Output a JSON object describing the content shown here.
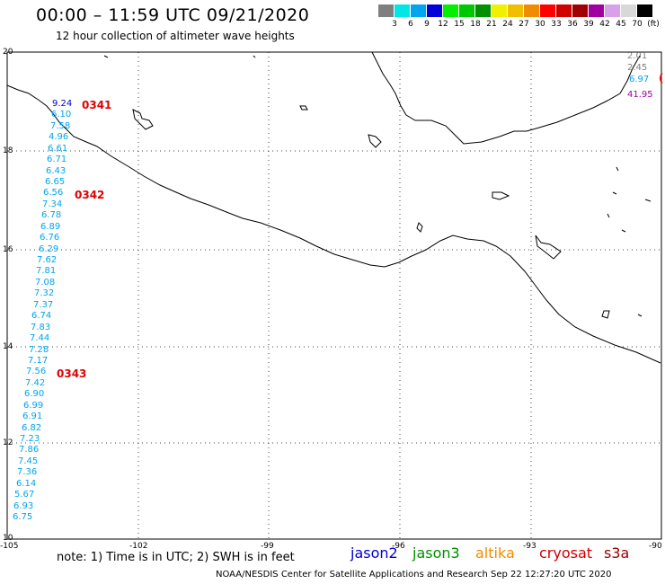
{
  "title": "00:00 – 11:59 UTC 09/21/2020",
  "subtitle": "12 hour collection of altimeter wave heights",
  "legend": {
    "labels": [
      "3",
      "6",
      "9",
      "12",
      "15",
      "18",
      "21",
      "24",
      "27",
      "30",
      "33",
      "36",
      "39",
      "42",
      "45",
      "70"
    ],
    "unit": "(ft)",
    "colors": [
      "#7f7f7f",
      "#00e6e6",
      "#00a5ef",
      "#0000d8",
      "#00f000",
      "#00c800",
      "#009000",
      "#f0f000",
      "#f0c000",
      "#f08c00",
      "#ff0000",
      "#d00000",
      "#a00000",
      "#a000a0",
      "#d8a0e8",
      "#d8d8d8",
      "#000000"
    ]
  },
  "axes": {
    "lat_labels": [
      "20",
      "18",
      "16",
      "14",
      "12",
      "10"
    ],
    "lon_labels": [
      "-105",
      "-102",
      "-99",
      "-96",
      "-93",
      "-90"
    ]
  },
  "swh_left": [
    "9.24",
    "6.10",
    "7.58",
    "4.96",
    "6.61",
    "6.71",
    "6.43",
    "6.65",
    "6.56",
    "7.34",
    "6.78",
    "6.89",
    "6.76",
    "6.29",
    "7.62",
    "7.81",
    "7.08",
    "7.32",
    "7.37",
    "6.74",
    "7.83",
    "7.44",
    "7.28",
    "7.17",
    "7.56",
    "7.42",
    "6.90",
    "6.99",
    "6.91",
    "6.82",
    "7.23",
    "7.86",
    "7.45",
    "7.36",
    "6.14",
    "5.67",
    "6.93",
    "6.75"
  ],
  "swh_right": [
    {
      "text": "2.01",
      "color": "#7f7f7f"
    },
    {
      "text": "2.45",
      "color": "#7f7f7f"
    },
    {
      "text": "6.97",
      "color": "#00a5ef"
    },
    {
      "text": "41.95",
      "color": "#a000a0"
    }
  ],
  "passes": [
    "0341",
    "0342",
    "0343"
  ],
  "edge_mark": "(",
  "note": "note:  1) Time is in UTC;  2) SWH is in feet",
  "satellites": [
    {
      "name": "jason2",
      "color": "#0000d8"
    },
    {
      "name": "jason3",
      "color": "#009000"
    },
    {
      "name": "altika",
      "color": "#f08c00"
    },
    {
      "name": "cryosat",
      "color": "#d00000"
    },
    {
      "name": "s3a",
      "color": "#a00000"
    }
  ],
  "credit": "NOAA/NESDIS Center for Satellite Applications and Research    Sep 22 12:27:20 UTC 2020"
}
